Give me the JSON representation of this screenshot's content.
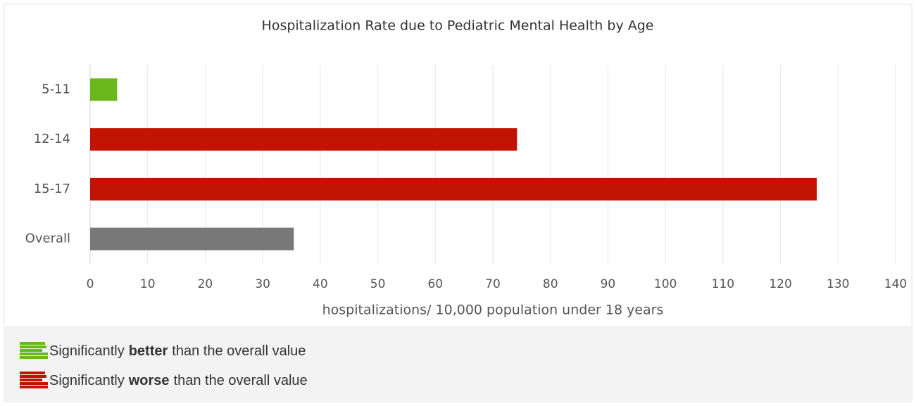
{
  "chart_data": {
    "type": "bar",
    "orientation": "horizontal",
    "title": "Hospitalization Rate due to Pediatric Mental Health by Age",
    "categories": [
      "5-11",
      "12-14",
      "15-17",
      "Overall"
    ],
    "values": [
      4.7,
      74.2,
      126.3,
      35.4
    ],
    "colors": [
      "#6ab71e",
      "#c01400",
      "#c01400",
      "#787878"
    ],
    "xlabel": "hospitalizations/ 10,000 population under 18 years",
    "xlim": [
      0,
      140
    ],
    "xticks": [
      0,
      10,
      20,
      30,
      40,
      50,
      60,
      70,
      80,
      90,
      100,
      110,
      120,
      130,
      140
    ],
    "grid": true,
    "legend": [
      {
        "prefix": "Significantly",
        "bold": "better",
        "suffix": "than the overall value",
        "color": "#6ab71e"
      },
      {
        "prefix": "Significantly",
        "bold": "worse",
        "suffix": "than the overall value",
        "color": "#c01400"
      }
    ]
  }
}
